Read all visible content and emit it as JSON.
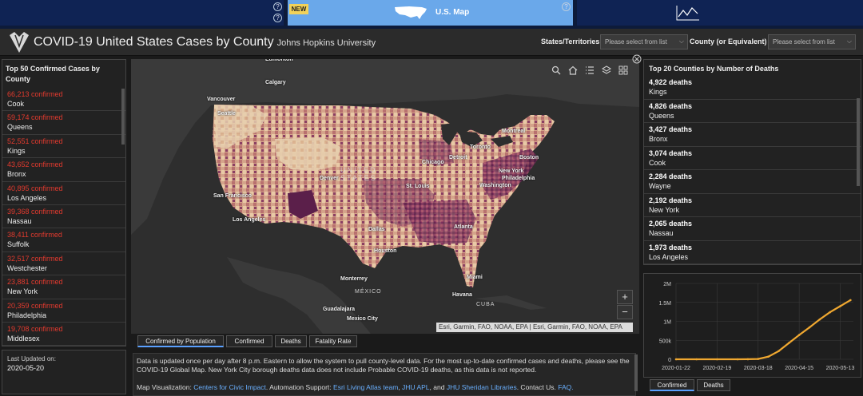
{
  "colors": {
    "accent": "#5aa0ff",
    "confirmed_red": "#e23a2e",
    "chart_line": "#f0a830",
    "link": "#6ab0ff"
  },
  "top_strip": {
    "new_badge": "NEW",
    "map_tab_label": "U.S. Map",
    "help_icon": "?"
  },
  "header": {
    "title": "COVID-19 United States Cases by County",
    "subtitle": "Johns Hopkins University",
    "states_label": "States/Territories",
    "states_placeholder": "Please select from list",
    "county_label": "County (or Equivalent)",
    "county_placeholder": "Please select from list"
  },
  "left_panel": {
    "title": "Top 50 Confirmed Cases by County",
    "items": [
      {
        "count": "66,213 confirmed",
        "name": "Cook"
      },
      {
        "count": "59,174 confirmed",
        "name": "Queens"
      },
      {
        "count": "52,551 confirmed",
        "name": "Kings"
      },
      {
        "count": "43,652 confirmed",
        "name": "Bronx"
      },
      {
        "count": "40,895 confirmed",
        "name": "Los Angeles"
      },
      {
        "count": "39,368 confirmed",
        "name": "Nassau"
      },
      {
        "count": "38,411 confirmed",
        "name": "Suffolk"
      },
      {
        "count": "32,517 confirmed",
        "name": "Westchester"
      },
      {
        "count": "23,881 confirmed",
        "name": "New York"
      },
      {
        "count": "20,359 confirmed",
        "name": "Philadelphia"
      },
      {
        "count": "19,708 confirmed",
        "name": "Middlesex"
      }
    ]
  },
  "last_updated": {
    "label": "Last Updated on:",
    "date": "2020-05-20"
  },
  "map": {
    "cities": [
      {
        "name": "Edmonton"
      },
      {
        "name": "Calgary"
      },
      {
        "name": "Vancouver"
      },
      {
        "name": "Seattle"
      },
      {
        "name": "San Francisco"
      },
      {
        "name": "Los Angeles"
      },
      {
        "name": "Denver"
      },
      {
        "name": "Dallas"
      },
      {
        "name": "Houston"
      },
      {
        "name": "Chicago"
      },
      {
        "name": "St. Louis"
      },
      {
        "name": "Detroit"
      },
      {
        "name": "Toronto"
      },
      {
        "name": "Montreal"
      },
      {
        "name": "Boston"
      },
      {
        "name": "New York"
      },
      {
        "name": "Philadelphia"
      },
      {
        "name": "Washington"
      },
      {
        "name": "Atlanta"
      },
      {
        "name": "Miami"
      },
      {
        "name": "Havana"
      },
      {
        "name": "Monterrey"
      },
      {
        "name": "Guadalajara"
      },
      {
        "name": "Mexico City"
      }
    ],
    "countries": [
      "MÉXICO",
      "CUBA"
    ],
    "country_us": [
      "UNITED",
      "STATES"
    ],
    "attribution": "Esri, Garmin, FAO, NOAA, EPA | Esri, Garmin, FAO, NOAA, EPA",
    "zoom_in": "+",
    "zoom_out": "−",
    "tabs": [
      "Confirmed by Population",
      "Confirmed",
      "Deaths",
      "Fatality Rate"
    ]
  },
  "info": {
    "text": "Data is updated once per day after 8 p.m. Eastern to allow the system to pull county-level data. For the most up-to-date confirmed cases and deaths, please see the COVID-19 Global Map. New York City borough deaths data does not include Probable COVID-19 deaths, as this data is not reported.",
    "map_vis_label": "Map Visualization:",
    "map_vis_link": "Centers for Civic Impact",
    "automation_label": ". Automation Support:",
    "automation_link": "Esri Living Atlas team",
    "sep1": ",",
    "jhu_apl": "JHU APL",
    "sep2": ", and",
    "jhu_lib": "JHU Sheridan Libraries",
    "contact": ". Contact Us.",
    "faq": "FAQ."
  },
  "right_panel": {
    "title": "Top 20 Counties by Number of Deaths",
    "items": [
      {
        "count": "4,922 deaths",
        "name": "Kings"
      },
      {
        "count": "4,826 deaths",
        "name": "Queens"
      },
      {
        "count": "3,427 deaths",
        "name": "Bronx"
      },
      {
        "count": "3,074 deaths",
        "name": "Cook"
      },
      {
        "count": "2,284 deaths",
        "name": "Wayne"
      },
      {
        "count": "2,192 deaths",
        "name": "New York"
      },
      {
        "count": "2,065 deaths",
        "name": "Nassau"
      },
      {
        "count": "1,973 deaths",
        "name": "Los Angeles"
      }
    ]
  },
  "chart_tabs": [
    "Confirmed",
    "Deaths"
  ],
  "chart_data": {
    "type": "line",
    "x_ticks": [
      "2020-01-22",
      "2020-02-19",
      "2020-03-18",
      "2020-04-15",
      "2020-05-13"
    ],
    "y_ticks": [
      "0",
      "500k",
      "1M",
      "1.5M",
      "2M"
    ],
    "ylim": [
      0,
      2000000
    ],
    "x": [
      "2020-01-22",
      "2020-02-05",
      "2020-02-19",
      "2020-03-04",
      "2020-03-11",
      "2020-03-18",
      "2020-03-25",
      "2020-04-01",
      "2020-04-08",
      "2020-04-15",
      "2020-04-22",
      "2020-04-29",
      "2020-05-06",
      "2020-05-13",
      "2020-05-20"
    ],
    "series": [
      {
        "values": [
          1,
          12,
          15,
          150,
          1300,
          9000,
          70000,
          215000,
          430000,
          640000,
          840000,
          1050000,
          1240000,
          1400000,
          1560000
        ]
      }
    ]
  }
}
